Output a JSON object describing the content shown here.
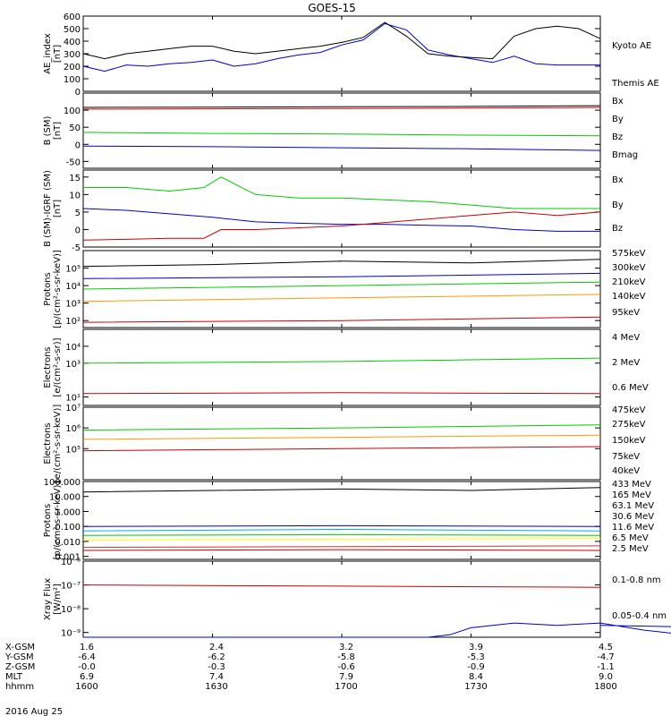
{
  "title": "GOES-15",
  "date_label": "2016 Aug 25",
  "chart_data": [
    {
      "id": "ae",
      "type": "line",
      "ylabel": [
        "AE_index",
        "[nT]"
      ],
      "scale": "linear",
      "ylim": [
        0,
        600
      ],
      "ticks": [
        0,
        100,
        200,
        300,
        400,
        500,
        600
      ],
      "tick_labels": [
        "0",
        "100",
        "200",
        "300",
        "400",
        "500",
        "600"
      ],
      "series": [
        {
          "name": "Kyoto AE",
          "color": "#0000cc",
          "x": [
            1600,
            1605,
            1610,
            1615,
            1620,
            1625,
            1630,
            1635,
            1640,
            1645,
            1650,
            1655,
            1700,
            1705,
            1710,
            1715,
            1720,
            1725,
            1730,
            1735,
            1740,
            1745,
            1750,
            1755,
            1800
          ],
          "y": [
            200,
            160,
            210,
            200,
            220,
            230,
            250,
            200,
            220,
            260,
            290,
            310,
            370,
            410,
            540,
            490,
            330,
            290,
            260,
            230,
            280,
            220,
            210,
            210,
            210
          ]
        },
        {
          "name": "Themis AE",
          "color": "#000000",
          "x": [
            1600,
            1605,
            1610,
            1615,
            1620,
            1625,
            1630,
            1635,
            1640,
            1645,
            1650,
            1655,
            1700,
            1705,
            1710,
            1715,
            1720,
            1725,
            1730,
            1735,
            1740,
            1745,
            1750,
            1755,
            1800
          ],
          "y": [
            300,
            260,
            300,
            320,
            340,
            360,
            360,
            320,
            300,
            320,
            340,
            360,
            390,
            430,
            550,
            440,
            300,
            280,
            270,
            260,
            440,
            500,
            520,
            500,
            420
          ]
        }
      ],
      "legend": [
        "Kyoto AE",
        "Themis AE"
      ]
    },
    {
      "id": "b",
      "type": "line",
      "ylabel": [
        "B (SM)",
        "[nT]"
      ],
      "scale": "linear",
      "ylim": [
        -70,
        150
      ],
      "ticks": [
        -50,
        0,
        50,
        100
      ],
      "tick_labels": [
        "-50",
        "0",
        "50",
        "100"
      ],
      "series": [
        {
          "name": "Bx",
          "color": "#0000cc",
          "x": [
            1600,
            1630,
            1700,
            1730,
            1800
          ],
          "y": [
            -5,
            -7,
            -10,
            -13,
            -18
          ]
        },
        {
          "name": "By",
          "color": "#00cc00",
          "x": [
            1600,
            1630,
            1700,
            1730,
            1800
          ],
          "y": [
            35,
            32,
            30,
            27,
            25
          ]
        },
        {
          "name": "Bz",
          "color": "#cc0000",
          "x": [
            1600,
            1630,
            1700,
            1730,
            1800
          ],
          "y": [
            103,
            104,
            105,
            106,
            108
          ]
        },
        {
          "name": "Bmag",
          "color": "#000000",
          "x": [
            1600,
            1630,
            1700,
            1730,
            1800
          ],
          "y": [
            108,
            109,
            110,
            111,
            113
          ]
        }
      ],
      "legend": [
        "Bx",
        "By",
        "Bz",
        "Bmag"
      ]
    },
    {
      "id": "dB",
      "type": "line",
      "ylabel": [
        "B (SM)-IGRF (SM)",
        "[nT]"
      ],
      "scale": "linear",
      "ylim": [
        -5,
        17
      ],
      "ticks": [
        -5,
        0,
        5,
        10,
        15
      ],
      "tick_labels": [
        "-5",
        "0",
        "5",
        "10",
        "15"
      ],
      "series": [
        {
          "name": "Bx",
          "color": "#0000cc",
          "x": [
            1600,
            1610,
            1620,
            1630,
            1640,
            1650,
            1700,
            1710,
            1720,
            1730,
            1740,
            1750,
            1800
          ],
          "y": [
            6,
            5.5,
            4.5,
            3.5,
            2.2,
            1.8,
            1.5,
            1.5,
            1.2,
            1,
            0,
            -0.5,
            -0.5
          ]
        },
        {
          "name": "By",
          "color": "#00cc00",
          "x": [
            1600,
            1610,
            1620,
            1628,
            1632,
            1640,
            1650,
            1700,
            1710,
            1720,
            1730,
            1740,
            1750,
            1800
          ],
          "y": [
            12,
            12,
            11,
            12,
            15,
            10,
            9,
            9,
            8.5,
            8,
            7,
            6,
            6,
            6
          ]
        },
        {
          "name": "Bz",
          "color": "#cc0000",
          "x": [
            1600,
            1610,
            1620,
            1628,
            1632,
            1640,
            1650,
            1700,
            1710,
            1720,
            1730,
            1740,
            1750,
            1800
          ],
          "y": [
            -3,
            -2.8,
            -2.5,
            -2.5,
            0,
            0,
            0.5,
            1,
            2,
            3,
            4,
            5,
            4,
            5
          ]
        }
      ],
      "legend": [
        "Bx",
        "By",
        "Bz"
      ]
    },
    {
      "id": "protons",
      "type": "line",
      "ylabel": [
        "Protons",
        "[p/(cm²-s-sr-keV)]"
      ],
      "scale": "log",
      "ylim_exp": [
        1.6,
        6
      ],
      "ticks_exp": [
        2,
        3,
        4,
        5
      ],
      "tick_labels": [
        "10²",
        "10³",
        "10⁴",
        "10⁵"
      ],
      "series": [
        {
          "name": "575keV",
          "color": "#cc0000",
          "x": [
            1600,
            1700,
            1800
          ],
          "logy": [
            1.9,
            2.0,
            2.2
          ]
        },
        {
          "name": "300keV",
          "color": "#ff9900",
          "x": [
            1600,
            1700,
            1800
          ],
          "logy": [
            3.1,
            3.3,
            3.5
          ]
        },
        {
          "name": "210keV",
          "color": "#00cc00",
          "x": [
            1600,
            1700,
            1800
          ],
          "logy": [
            3.8,
            4.0,
            4.2
          ]
        },
        {
          "name": "140keV",
          "color": "#0000cc",
          "x": [
            1600,
            1700,
            1800
          ],
          "logy": [
            4.4,
            4.5,
            4.7
          ]
        },
        {
          "name": "95keV",
          "color": "#000000",
          "x": [
            1600,
            1630,
            1700,
            1730,
            1800
          ],
          "logy": [
            5.1,
            5.2,
            5.4,
            5.3,
            5.5
          ]
        }
      ],
      "legend": [
        "575keV",
        "300keV",
        "210keV",
        "140keV",
        "95keV"
      ]
    },
    {
      "id": "electrons1",
      "type": "line",
      "ylabel": [
        "Electrons",
        "[e/(cm²-s-sr)]"
      ],
      "scale": "log",
      "ylim_exp": [
        0.5,
        5
      ],
      "ticks_exp": [
        1,
        3,
        4
      ],
      "tick_labels": [
        "10¹",
        "10³",
        "10⁴"
      ],
      "series": [
        {
          "name": "4 MeV",
          "color": "#cc0000",
          "x": [
            1600,
            1700,
            1800
          ],
          "logy": [
            1.2,
            1.25,
            1.2
          ]
        },
        {
          "name": "2 MeV",
          "color": "#00cc00",
          "x": [
            1600,
            1700,
            1800
          ],
          "logy": [
            3.0,
            3.1,
            3.3
          ]
        },
        {
          "name": "0.6 MeV",
          "color": "#000000",
          "x": [
            1600,
            1800
          ],
          "logy": [
            5,
            5
          ]
        }
      ],
      "legend": [
        "4 MeV",
        "2 MeV",
        "0.6 MeV"
      ]
    },
    {
      "id": "electrons2",
      "type": "line",
      "ylabel": [
        "Electrons",
        "[e/(cm²-s-sr-keV)]"
      ],
      "scale": "log",
      "ylim_exp": [
        3.5,
        7
      ],
      "ticks_exp": [
        5,
        6,
        7
      ],
      "tick_labels": [
        "10⁵",
        "10⁶",
        "10⁷"
      ],
      "series": [
        {
          "name": "475keV",
          "color": "#cc0000",
          "x": [
            1600,
            1700,
            1800
          ],
          "logy": [
            4.9,
            5.0,
            5.1
          ]
        },
        {
          "name": "275keV",
          "color": "#ff9900",
          "x": [
            1600,
            1700,
            1800
          ],
          "logy": [
            5.45,
            5.55,
            5.65
          ]
        },
        {
          "name": "150keV",
          "color": "#00cc00",
          "x": [
            1600,
            1700,
            1800
          ],
          "logy": [
            5.9,
            6.0,
            6.15
          ]
        },
        {
          "name": "75keV",
          "color": "#0000cc",
          "x": [
            1600,
            1800
          ],
          "logy": [
            7,
            7
          ]
        },
        {
          "name": "40keV",
          "color": "#000000",
          "x": [
            1600,
            1800
          ],
          "logy": [
            7,
            7
          ]
        }
      ],
      "legend": [
        "475keV",
        "275keV",
        "150keV",
        "75keV",
        "40keV"
      ]
    },
    {
      "id": "hi_protons",
      "type": "line",
      "ylabel": [
        "Protons",
        "[p/(cm²-s-sr-keV)]"
      ],
      "scale": "log",
      "ylim_exp": [
        -3.2,
        2
      ],
      "ticks_exp": [
        -3,
        -2,
        -1,
        0,
        1,
        2
      ],
      "tick_labels": [
        "0.001",
        "0.010",
        "0.100",
        "1.000",
        "10.000",
        "100.000"
      ],
      "series": [
        {
          "name": "433 MeV",
          "color": "#cc0000",
          "x": [
            1600,
            1700,
            1800
          ],
          "logy": [
            -2.6,
            -2.55,
            -2.6
          ]
        },
        {
          "name": "165 MeV",
          "color": "#cc3333",
          "x": [
            1600,
            1700,
            1800
          ],
          "logy": [
            -2.4,
            -2.35,
            -2.3
          ]
        },
        {
          "name": "63.1 MeV",
          "color": "#ffff00",
          "x": [
            1600,
            1700,
            1800
          ],
          "logy": [
            -1.9,
            -1.85,
            -1.8
          ]
        },
        {
          "name": "30.6 MeV",
          "color": "#00cc00",
          "x": [
            1600,
            1700,
            1800
          ],
          "logy": [
            -1.6,
            -1.55,
            -1.6
          ]
        },
        {
          "name": "11.6 MeV",
          "color": "#00aaff",
          "x": [
            1600,
            1700,
            1800
          ],
          "logy": [
            -1.3,
            -1.2,
            -1.3
          ]
        },
        {
          "name": "6.5 MeV",
          "color": "#0000cc",
          "x": [
            1600,
            1700,
            1800
          ],
          "logy": [
            -1.0,
            -0.95,
            -1.0
          ]
        },
        {
          "name": "2.5 MeV",
          "color": "#000000",
          "x": [
            1600,
            1630,
            1700,
            1730,
            1800
          ],
          "logy": [
            1.3,
            1.4,
            1.5,
            1.4,
            1.6
          ]
        }
      ],
      "legend": [
        "433 MeV",
        "165 MeV",
        "63.1 MeV",
        "30.6 MeV",
        "11.6 MeV",
        "6.5 MeV",
        "2.5 MeV"
      ]
    },
    {
      "id": "xray",
      "type": "line",
      "ylabel": [
        "Xray Flux",
        "[W/m²]"
      ],
      "scale": "log",
      "ylim_exp": [
        -9.2,
        -6
      ],
      "ticks_exp": [
        -9,
        -8,
        -7,
        -6
      ],
      "tick_labels": [
        "10⁻⁹",
        "10⁻⁸",
        "10⁻⁷",
        "10⁻⁶"
      ],
      "series": [
        {
          "name": "0.1-0.8 nm",
          "color": "#cc0000",
          "x": [
            1600,
            1700,
            1800
          ],
          "logy": [
            -7,
            -7.05,
            -7.1
          ]
        },
        {
          "name": "0.05-0.4 nm",
          "color": "#0000cc",
          "x": [
            1600,
            1720,
            1725,
            1730,
            1740,
            1750,
            1760,
            1770,
            1780,
            1790,
            1800
          ],
          "logy": [
            -9.2,
            -9.2,
            -9.1,
            -8.8,
            -8.6,
            -8.7,
            -8.6,
            -8.9,
            -9.1,
            -8.8,
            -8.7
          ]
        }
      ],
      "legend": [
        "0.1-0.8 nm",
        "0.05-0.4 nm"
      ]
    }
  ],
  "xaxis": {
    "row_labels": [
      "X-GSM",
      "Y-GSM",
      "Z-GSM",
      "MLT",
      "hhmm"
    ],
    "columns": [
      {
        "values": [
          "1.6",
          "-6.4",
          "-0.0",
          "6.9",
          "1600"
        ]
      },
      {
        "values": [
          "2.4",
          "-6.2",
          "-0.3",
          "7.4",
          "1630"
        ]
      },
      {
        "values": [
          "3.2",
          "-5.8",
          "-0.6",
          "7.9",
          "1700"
        ]
      },
      {
        "values": [
          "3.9",
          "-5.3",
          "-0.9",
          "8.4",
          "1730"
        ]
      },
      {
        "values": [
          "4.5",
          "-4.7",
          "-1.1",
          "9.0",
          "1800"
        ]
      }
    ]
  }
}
